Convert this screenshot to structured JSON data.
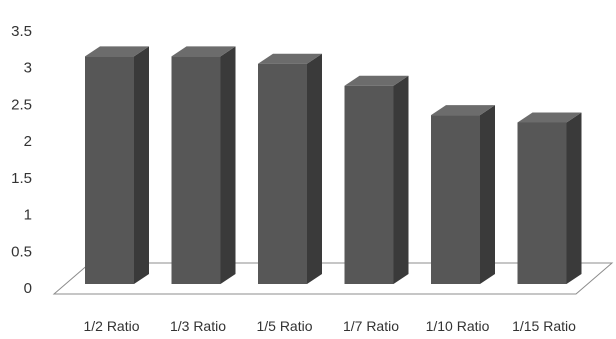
{
  "chart_data": {
    "type": "bar",
    "categories": [
      "1/2 Ratio",
      "1/3 Ratio",
      "1/5 Ratio",
      "1/7 Ratio",
      "1/10 Ratio",
      "1/15 Ratio"
    ],
    "values": [
      3.1,
      3.1,
      3.0,
      2.7,
      2.3,
      2.2
    ],
    "ylim": [
      0,
      3.5
    ],
    "yticks": [
      "0",
      "0.5",
      "1",
      "1.5",
      "2",
      "2.5",
      "3",
      "3.5"
    ],
    "title": "",
    "xlabel": "",
    "ylabel": "",
    "grid": false,
    "legend": false,
    "style": "3d-column",
    "colors": {
      "bar_front": "#575757",
      "bar_side": "#3a3a3a",
      "bar_top": "#6c6c6c",
      "floor_stroke": "#8c8c8c",
      "text": "#333333"
    }
  }
}
